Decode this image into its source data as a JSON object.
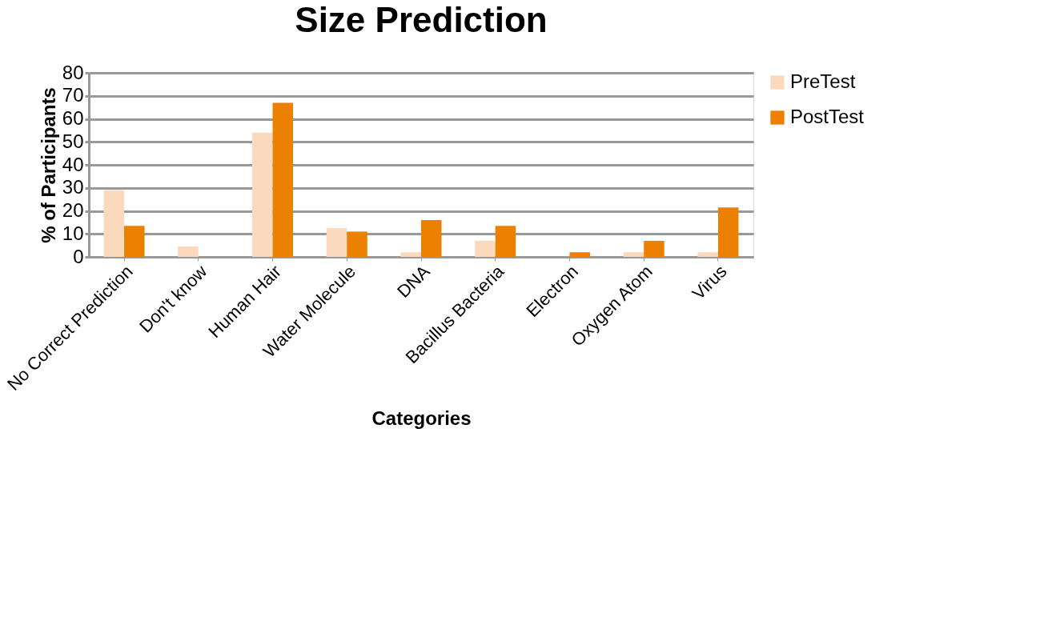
{
  "chart_data": {
    "type": "bar",
    "title": "Size Prediction",
    "xlabel": "Categories",
    "ylabel": "% of Participants",
    "categories": [
      "No Correct Prediction",
      "Don't know",
      "Human Hair",
      "Water Molecule",
      "DNA",
      "Bacillus Bacteria",
      "Electron",
      "Oxygen Atom",
      "Virus"
    ],
    "series": [
      {
        "name": "PreTest",
        "color": "#fbd9bd",
        "values": [
          29,
          4.5,
          54,
          12.5,
          2,
          7,
          0,
          2,
          2
        ]
      },
      {
        "name": "PostTest",
        "color": "#ec8000",
        "values": [
          13.5,
          0,
          67,
          11,
          16,
          13.5,
          2,
          7,
          21.5
        ]
      }
    ],
    "ylim": [
      0,
      80
    ],
    "yticks": [
      0,
      10,
      20,
      30,
      40,
      50,
      60,
      70,
      80
    ],
    "grid": "y",
    "legend": "right"
  }
}
